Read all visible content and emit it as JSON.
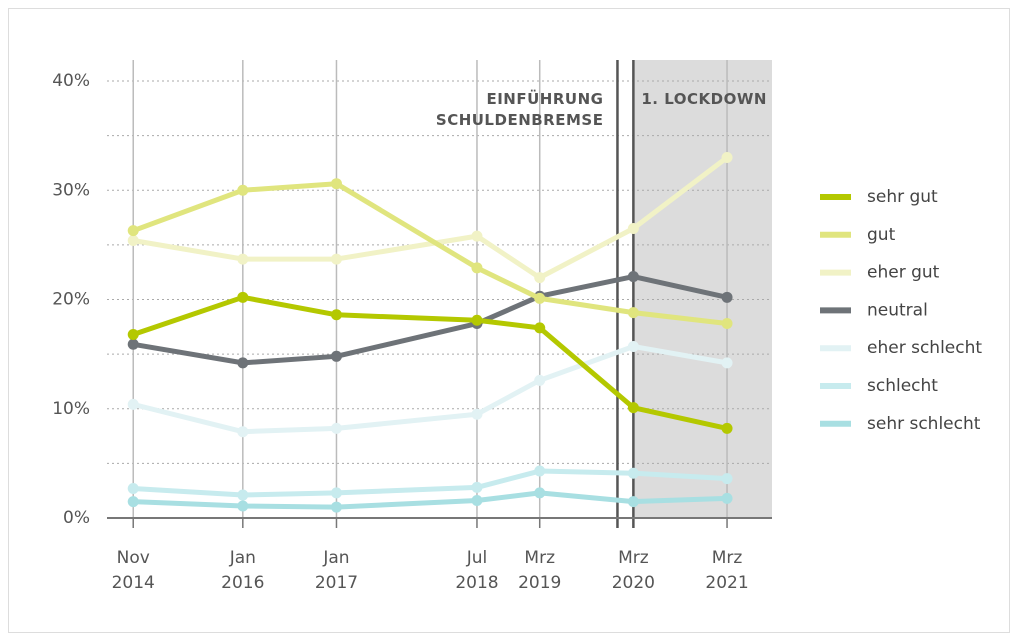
{
  "chart_data": {
    "type": "line",
    "x": [
      2014.83,
      2016.0,
      2017.0,
      2018.5,
      2019.17,
      2020.17,
      2021.17
    ],
    "xlim": [
      2014.55,
      2021.65
    ],
    "xticks": [
      {
        "value": 2014.83,
        "label": "Nov 2014"
      },
      {
        "value": 2016.0,
        "label": "Jan 2016"
      },
      {
        "value": 2017.0,
        "label": "Jan 2017"
      },
      {
        "value": 2018.5,
        "label": "Jul 2018"
      },
      {
        "value": 2019.17,
        "label": "Mrz 2019"
      },
      {
        "value": 2020.17,
        "label": "Mrz 2020"
      },
      {
        "value": 2021.17,
        "label": "Mrz 2021"
      }
    ],
    "ylim": [
      0,
      40
    ],
    "yticks": [
      {
        "value": 0,
        "label": "0%"
      },
      {
        "value": 10,
        "label": "10%"
      },
      {
        "value": 20,
        "label": "20%"
      },
      {
        "value": 30,
        "label": "30%"
      },
      {
        "value": 40,
        "label": "40%"
      }
    ],
    "minor_yticks": [
      5,
      15,
      25,
      35
    ],
    "grid": true,
    "legend": "right",
    "series": [
      {
        "name": "sehr gut",
        "color": "#b4c800",
        "values": [
          16.8,
          20.2,
          18.6,
          18.1,
          17.4,
          10.1,
          8.2
        ]
      },
      {
        "name": "gut",
        "color": "#e0e57e",
        "values": [
          26.3,
          30.0,
          30.6,
          22.9,
          20.1,
          18.8,
          17.8
        ]
      },
      {
        "name": "eher gut",
        "color": "#f1f2c6",
        "values": [
          25.4,
          23.7,
          23.7,
          25.8,
          22.0,
          26.5,
          33.0
        ]
      },
      {
        "name": "neutral",
        "color": "#6e7378",
        "values": [
          15.9,
          14.2,
          14.8,
          17.8,
          20.3,
          22.1,
          20.2
        ]
      },
      {
        "name": "eher schlecht",
        "color": "#e2f2f4",
        "values": [
          10.4,
          7.9,
          8.2,
          9.5,
          12.6,
          15.7,
          14.2
        ]
      },
      {
        "name": "schlecht",
        "color": "#c7ebee",
        "values": [
          2.7,
          2.1,
          2.3,
          2.8,
          4.3,
          4.1,
          3.6
        ]
      },
      {
        "name": "sehr schlecht",
        "color": "#a8dfe2",
        "values": [
          1.5,
          1.1,
          1.0,
          1.6,
          2.3,
          1.5,
          1.8
        ]
      }
    ],
    "annotations": [
      {
        "text": "EINFÜHRUNG SCHULDENBREMSE",
        "x": 2020.0
      },
      {
        "text": "1. LOCKDOWN",
        "x": 2020.17,
        "shade_to": 2021.65
      }
    ]
  }
}
